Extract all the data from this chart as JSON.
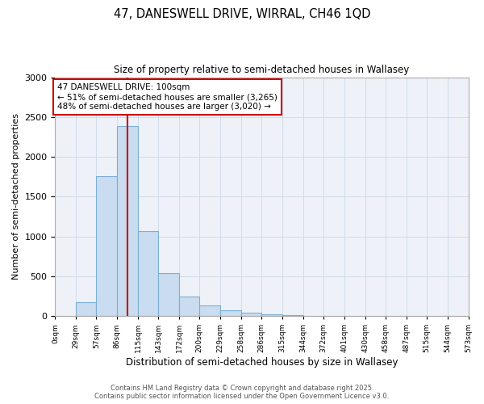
{
  "title_line1": "47, DANESWELL DRIVE, WIRRAL, CH46 1QD",
  "title_line2": "Size of property relative to semi-detached houses in Wallasey",
  "xlabel": "Distribution of semi-detached houses by size in Wallasey",
  "ylabel": "Number of semi-detached properties",
  "bin_labels": [
    "0sqm",
    "29sqm",
    "57sqm",
    "86sqm",
    "115sqm",
    "143sqm",
    "172sqm",
    "200sqm",
    "229sqm",
    "258sqm",
    "286sqm",
    "315sqm",
    "344sqm",
    "372sqm",
    "401sqm",
    "430sqm",
    "458sqm",
    "487sqm",
    "515sqm",
    "544sqm",
    "573sqm"
  ],
  "bin_edges": [
    0,
    29,
    57,
    86,
    115,
    143,
    172,
    200,
    229,
    258,
    286,
    315,
    344,
    372,
    401,
    430,
    458,
    487,
    515,
    544,
    573
  ],
  "bar_heights": [
    0,
    175,
    1760,
    2390,
    1070,
    540,
    240,
    130,
    75,
    40,
    20,
    10,
    3,
    0,
    0,
    0,
    0,
    0,
    0,
    0
  ],
  "bar_color": "#c9dcf0",
  "bar_edge_color": "#7bafd4",
  "property_size": 100,
  "red_line_color": "#cc0000",
  "annotation_text_line1": "47 DANESWELL DRIVE: 100sqm",
  "annotation_text_line2": "← 51% of semi-detached houses are smaller (3,265)",
  "annotation_text_line3": "48% of semi-detached houses are larger (3,020) →",
  "annotation_box_edge_color": "#cc0000",
  "ylim": [
    0,
    3000
  ],
  "yticks": [
    0,
    500,
    1000,
    1500,
    2000,
    2500,
    3000
  ],
  "grid_color": "#d0dce8",
  "background_color": "#eef2f8",
  "footnote_line1": "Contains HM Land Registry data © Crown copyright and database right 2025.",
  "footnote_line2": "Contains public sector information licensed under the Open Government Licence v3.0."
}
